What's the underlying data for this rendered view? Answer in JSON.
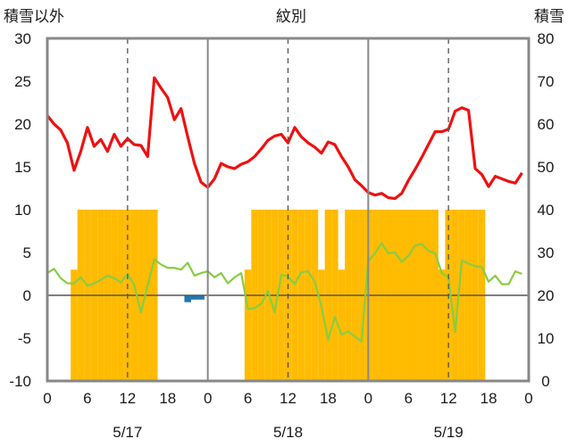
{
  "chart_data": {
    "type": "combo",
    "title": "紋別",
    "y_left_label": "積雪以外",
    "y_right_label": "積雪",
    "y_left_range": [
      -10,
      30
    ],
    "y_right_range": [
      0,
      80
    ],
    "y_left_ticks": [
      "30",
      "25",
      "20",
      "15",
      "10",
      "5",
      "0",
      "-5",
      "-10"
    ],
    "y_right_ticks": [
      "80",
      "70",
      "60",
      "50",
      "40",
      "30",
      "20",
      "10",
      "0"
    ],
    "x_hour_ticks": [
      "0",
      "6",
      "12",
      "18",
      "0",
      "6",
      "12",
      "18",
      "0",
      "6",
      "12",
      "18",
      "0"
    ],
    "x_date_labels": [
      "5/17",
      "5/18",
      "5/19"
    ],
    "x_unit": "hours since 5/17 00:00 (0–72)",
    "grid": "dashed vertical lines at 12:00; solid at 0:00",
    "colors": {
      "temperature": "#ee1111",
      "wind": "#88cc44",
      "snow_bar": "#ffbb00",
      "precip_bar": "#1f77b4"
    },
    "series": [
      {
        "name": "",
        "kind": "line",
        "axis": "left",
        "color": "#ee1111",
        "x": [
          0,
          1,
          2,
          3,
          4,
          5,
          6,
          7,
          8,
          9,
          10,
          11,
          12,
          13,
          14,
          15,
          16,
          17,
          18,
          19,
          20,
          21,
          22,
          23,
          24,
          25,
          26,
          27,
          28,
          29,
          30,
          31,
          32,
          33,
          34,
          35,
          36,
          37,
          38,
          39,
          40,
          41,
          42,
          43,
          44,
          45,
          46,
          47,
          48,
          49,
          50,
          51,
          52,
          53,
          54,
          55,
          56,
          57,
          58,
          59,
          60,
          61,
          62,
          63,
          64,
          65,
          66,
          67,
          68,
          69,
          70,
          71
        ],
        "y": [
          21,
          20,
          19.3,
          17.8,
          14.6,
          16.8,
          19.6,
          17.4,
          18.2,
          16.8,
          18.8,
          17.4,
          18.3,
          17.6,
          17.5,
          16.2,
          25.4,
          24.2,
          23.1,
          20.5,
          21.8,
          18.5,
          15.4,
          13.2,
          12.6,
          13.6,
          15.4,
          15,
          14.8,
          15.3,
          15.6,
          16.2,
          17.1,
          18.1,
          18.6,
          18.8,
          17.8,
          19.6,
          18.5,
          17.8,
          17.3,
          16.6,
          17.9,
          17.6,
          16.2,
          15,
          13.5,
          12.8,
          12,
          11.7,
          11.9,
          11.4,
          11.3,
          11.9,
          13.4,
          14.7,
          16.1,
          17.6,
          19.1,
          19.1,
          19.4,
          21.5,
          21.9,
          21.6,
          14.8,
          14.1,
          12.7,
          13.9,
          13.6,
          13.3,
          13.1,
          14.3
        ]
      },
      {
        "name": "",
        "kind": "line",
        "axis": "left",
        "color": "#88cc44",
        "x": [
          0,
          1,
          2,
          3,
          4,
          5,
          6,
          7,
          8,
          9,
          10,
          11,
          12,
          13,
          14,
          15,
          16,
          17,
          18,
          19,
          20,
          21,
          22,
          23,
          24,
          25,
          26,
          27,
          28,
          29,
          30,
          31,
          32,
          33,
          34,
          35,
          36,
          37,
          38,
          39,
          40,
          41,
          42,
          43,
          44,
          45,
          46,
          47,
          48,
          49,
          50,
          51,
          52,
          53,
          54,
          55,
          56,
          57,
          58,
          59,
          60,
          61,
          62,
          63,
          64,
          65,
          66,
          67,
          68,
          69,
          70,
          71
        ],
        "y": [
          2.6,
          3.1,
          2,
          1.4,
          1.4,
          2.1,
          1.1,
          1.4,
          1.8,
          2.3,
          2,
          1.5,
          2.5,
          1.2,
          -2,
          1.1,
          4.2,
          3.6,
          3.2,
          3.2,
          3,
          3.8,
          2.3,
          2.6,
          2.8,
          2.1,
          2.6,
          1.4,
          2.1,
          2.6,
          -1.6,
          -1.5,
          -1,
          0.5,
          -2,
          2.4,
          2.2,
          1.3,
          2.7,
          2.8,
          1.6,
          -1.3,
          -5.2,
          -2.5,
          -4.6,
          -4.2,
          -4.8,
          -5.4,
          4,
          4.9,
          6.1,
          4.9,
          5,
          3.9,
          4.6,
          5.8,
          6,
          5.2,
          4.9,
          2.6,
          2.1,
          -4.3,
          4.1,
          3.7,
          3.4,
          3.3,
          1.6,
          2.3,
          1.3,
          1.3,
          2.8,
          2.5
        ]
      },
      {
        "name": "",
        "kind": "bar",
        "axis": "right",
        "color": "#ffbb00",
        "x": [
          4,
          5,
          6,
          7,
          8,
          9,
          10,
          11,
          12,
          13,
          14,
          15,
          16,
          30,
          31,
          32,
          33,
          34,
          35,
          36,
          37,
          38,
          39,
          40,
          41,
          42,
          43,
          44,
          45,
          46,
          47,
          48,
          49,
          50,
          51,
          52,
          53,
          54,
          55,
          56,
          57,
          58,
          59,
          60,
          61,
          62,
          63,
          64,
          65
        ],
        "y": [
          26,
          40,
          40,
          40,
          40,
          40,
          40,
          40,
          40,
          40,
          40,
          40,
          40,
          26,
          40,
          40,
          40,
          40,
          40,
          40,
          40,
          40,
          40,
          40,
          26,
          40,
          40,
          26,
          40,
          40,
          40,
          40,
          40,
          40,
          40,
          40,
          40,
          40,
          40,
          40,
          40,
          40,
          26,
          40,
          40,
          40,
          40,
          40,
          40
        ]
      },
      {
        "name": "",
        "kind": "bar",
        "axis": "left",
        "color": "#1f77b4",
        "x": [
          21,
          22,
          23
        ],
        "y": [
          -0.8,
          -0.5,
          -0.5
        ]
      }
    ]
  }
}
